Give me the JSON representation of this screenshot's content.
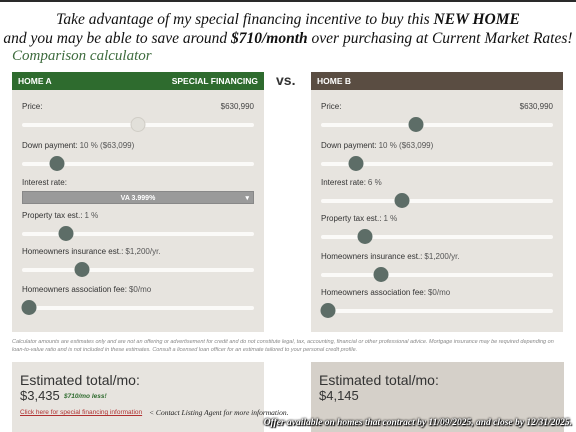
{
  "headline": {
    "line1_pre": "Take advantage of my special financing incentive to buy this ",
    "line1_bold": "NEW HOME",
    "line2_pre": "and you may be able to save around ",
    "line2_bold": "$710/month",
    "line2_post": " over purchasing at Current Market Rates!"
  },
  "subtitle": "Comparison calculator",
  "vs_label": "vs.",
  "home_a": {
    "name": "HOME A",
    "badge": "SPECIAL FINANCING",
    "price_label": "Price:",
    "price_value": "$630,990",
    "price_slider_pct": 0.5,
    "down_label": "Down payment:",
    "down_value": "10 % ($63,099)",
    "down_slider_pct": 0.15,
    "rate_label": "Interest rate:",
    "rate_select": "VA 3.999%",
    "tax_label": "Property tax est.:",
    "tax_value": "1 %",
    "tax_slider_pct": 0.19,
    "insurance_label": "Homeowners insurance est.:",
    "insurance_value": "$1,200/yr.",
    "insurance_slider_pct": 0.26,
    "hoa_label": "Homeowners association fee:",
    "hoa_value": "$0/mo",
    "hoa_slider_pct": 0.03
  },
  "home_b": {
    "name": "HOME B",
    "price_label": "Price:",
    "price_value": "$630,990",
    "price_slider_pct": 0.41,
    "down_label": "Down payment:",
    "down_value": "10 % ($63,099)",
    "down_slider_pct": 0.15,
    "rate_label": "Interest rate:",
    "rate_value": "6 %",
    "rate_slider_pct": 0.35,
    "tax_label": "Property tax est.:",
    "tax_value": "1 %",
    "tax_slider_pct": 0.19,
    "insurance_label": "Homeowners insurance est.:",
    "insurance_value": "$1,200/yr.",
    "insurance_slider_pct": 0.26,
    "hoa_label": "Homeowners association fee:",
    "hoa_value": "$0/mo",
    "hoa_slider_pct": 0.03
  },
  "disclaimer": "Calculator amounts are estimates only and are not an offering or advertisement for credit and do not constitute legal, tax, accounting, financial or other professional advice. Mortgage insurance may be required depending on loan-to-value ratio and is not included in these estimates. Consult a licensed loan officer for an estimate tailored to your personal credit profile.",
  "result_a": {
    "title": "Estimated total/mo:",
    "amount": "$3,435",
    "less": "$710/mo less!",
    "link": "Click here for special financing information",
    "contact": "< Contact Listing Agent for more information."
  },
  "result_b": {
    "title": "Estimated total/mo:",
    "amount": "$4,145"
  },
  "offer": "Offer available on homes that contract by 11/09/2025, and close by 12/31/2025.",
  "colors": {
    "home_a_header": "#2e6b2e",
    "home_b_header": "#5a4d42",
    "knob": "#5d6d67",
    "panel_bg": "#e7e4df"
  }
}
